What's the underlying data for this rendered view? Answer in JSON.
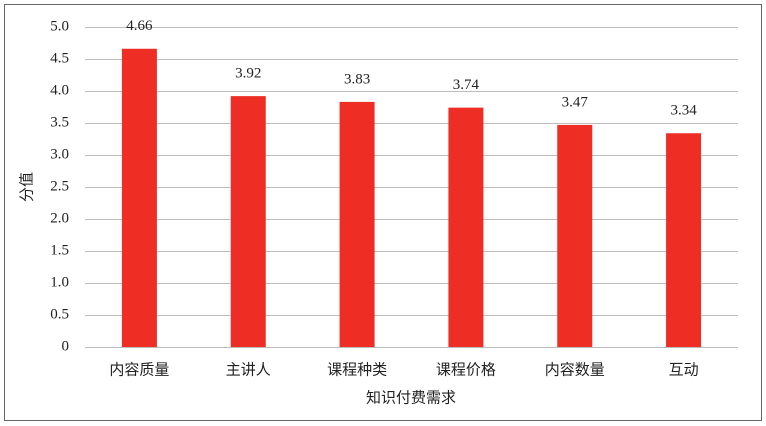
{
  "chart_data": {
    "type": "bar",
    "x_label": "知识付费需求",
    "y_label": "分值",
    "categories": [
      "内容质量",
      "主讲人",
      "课程种类",
      "课程价格",
      "内容数量",
      "互动"
    ],
    "values": [
      4.66,
      3.92,
      3.83,
      3.74,
      3.47,
      3.34
    ],
    "color": "#ee2d24",
    "ylim": [
      0,
      5
    ],
    "yticks": [
      0,
      0.5,
      {
        "value": 1,
        "label": "1.0"
      },
      1.5,
      {
        "value": 2,
        "label": "2.0"
      },
      2.5,
      {
        "value": 3,
        "label": "3.0"
      },
      3.5,
      {
        "value": 4,
        "label": "4.0"
      },
      4.5,
      {
        "value": 5,
        "label": "5.0"
      }
    ],
    "grid": true
  }
}
